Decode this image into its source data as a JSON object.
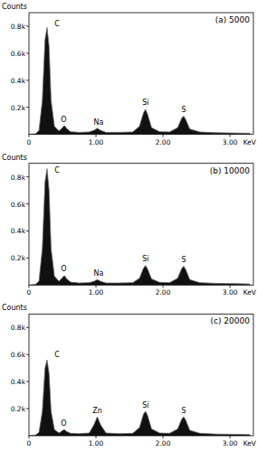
{
  "chart_data": [
    {
      "type": "area",
      "title": "(a) 5000",
      "xlabel": "KeV",
      "ylabel": "Counts",
      "color": "#111111",
      "grid": false,
      "xlim": [
        0,
        3.35
      ],
      "ylim": [
        0,
        900
      ],
      "xticks": [
        0,
        {
          "value": 1,
          "label": "1.00"
        },
        {
          "value": 2,
          "label": "2.00"
        },
        {
          "value": 3,
          "label": "3.00"
        }
      ],
      "yticks": [
        {
          "value": 200,
          "label": "0.2k"
        },
        {
          "value": 400,
          "label": "0.4k"
        },
        {
          "value": 600,
          "label": "0.6k"
        },
        {
          "value": 800,
          "label": "0.8k"
        }
      ],
      "x": [
        0,
        0.1,
        0.15,
        0.2,
        0.24,
        0.27,
        0.3,
        0.33,
        0.38,
        0.45,
        0.5,
        0.53,
        0.56,
        0.62,
        0.75,
        0.9,
        0.97,
        1.02,
        1.07,
        1.15,
        1.35,
        1.55,
        1.65,
        1.71,
        1.74,
        1.77,
        1.83,
        1.95,
        2.1,
        2.22,
        2.28,
        2.31,
        2.34,
        2.4,
        2.55,
        2.8,
        3.1,
        3.3
      ],
      "values": [
        0,
        5,
        30,
        250,
        700,
        790,
        650,
        250,
        60,
        25,
        50,
        65,
        45,
        20,
        15,
        18,
        30,
        45,
        30,
        15,
        15,
        18,
        60,
        160,
        185,
        150,
        50,
        20,
        18,
        50,
        120,
        135,
        110,
        40,
        18,
        12,
        10,
        8
      ],
      "annotations": [
        {
          "text": "C",
          "x": 0.42,
          "y": 800
        },
        {
          "text": "O",
          "x": 0.52,
          "y": 90
        },
        {
          "text": "Na",
          "x": 1.04,
          "y": 70
        },
        {
          "text": "Si",
          "x": 1.74,
          "y": 215
        },
        {
          "text": "S",
          "x": 2.31,
          "y": 165
        }
      ]
    },
    {
      "type": "area",
      "title": "(b) 10000",
      "xlabel": "KeV",
      "ylabel": "Counts",
      "color": "#111111",
      "grid": false,
      "xlim": [
        0,
        3.35
      ],
      "ylim": [
        0,
        900
      ],
      "xticks": [
        0,
        {
          "value": 1,
          "label": "1.00"
        },
        {
          "value": 2,
          "label": "2.00"
        },
        {
          "value": 3,
          "label": "3.00"
        }
      ],
      "yticks": [
        {
          "value": 200,
          "label": "0.2k"
        },
        {
          "value": 400,
          "label": "0.4k"
        },
        {
          "value": 600,
          "label": "0.6k"
        },
        {
          "value": 800,
          "label": "0.8k"
        }
      ],
      "x": [
        0,
        0.1,
        0.15,
        0.2,
        0.24,
        0.27,
        0.3,
        0.33,
        0.38,
        0.45,
        0.5,
        0.53,
        0.56,
        0.62,
        0.75,
        0.9,
        0.97,
        1.02,
        1.07,
        1.15,
        1.35,
        1.55,
        1.65,
        1.71,
        1.74,
        1.77,
        1.83,
        1.95,
        2.1,
        2.22,
        2.28,
        2.31,
        2.34,
        2.4,
        2.55,
        2.8,
        3.1,
        3.3
      ],
      "values": [
        0,
        5,
        30,
        270,
        760,
        860,
        700,
        270,
        65,
        28,
        55,
        70,
        48,
        22,
        15,
        18,
        28,
        40,
        28,
        15,
        15,
        18,
        50,
        125,
        145,
        120,
        45,
        20,
        18,
        50,
        122,
        140,
        115,
        40,
        18,
        12,
        10,
        8
      ],
      "annotations": [
        {
          "text": "C",
          "x": 0.42,
          "y": 830
        },
        {
          "text": "O",
          "x": 0.52,
          "y": 100
        },
        {
          "text": "Na",
          "x": 1.04,
          "y": 70
        },
        {
          "text": "Si",
          "x": 1.74,
          "y": 175
        },
        {
          "text": "S",
          "x": 2.31,
          "y": 170
        }
      ]
    },
    {
      "type": "area",
      "title": "(c) 20000",
      "xlabel": "KeV",
      "ylabel": "Counts",
      "color": "#111111",
      "grid": false,
      "xlim": [
        0,
        3.35
      ],
      "ylim": [
        0,
        900
      ],
      "xticks": [
        0,
        {
          "value": 1,
          "label": "1.00"
        },
        {
          "value": 2,
          "label": "2.00"
        },
        {
          "value": 3,
          "label": "3.00"
        }
      ],
      "yticks": [
        {
          "value": 200,
          "label": "0.2k"
        },
        {
          "value": 400,
          "label": "0.4k"
        },
        {
          "value": 600,
          "label": "0.6k"
        },
        {
          "value": 800,
          "label": "0.8k"
        }
      ],
      "x": [
        0,
        0.1,
        0.15,
        0.2,
        0.24,
        0.27,
        0.3,
        0.33,
        0.38,
        0.45,
        0.5,
        0.53,
        0.56,
        0.62,
        0.75,
        0.9,
        0.97,
        1.02,
        1.07,
        1.15,
        1.35,
        1.55,
        1.65,
        1.71,
        1.74,
        1.77,
        1.83,
        1.95,
        2.1,
        2.22,
        2.28,
        2.31,
        2.34,
        2.4,
        2.55,
        2.8,
        3.1,
        3.3
      ],
      "values": [
        0,
        5,
        25,
        180,
        500,
        560,
        460,
        180,
        45,
        20,
        38,
        45,
        32,
        18,
        15,
        20,
        80,
        140,
        80,
        20,
        15,
        18,
        60,
        160,
        180,
        150,
        50,
        20,
        18,
        50,
        122,
        140,
        115,
        40,
        18,
        12,
        10,
        8
      ],
      "annotations": [
        {
          "text": "C",
          "x": 0.42,
          "y": 580
        },
        {
          "text": "O",
          "x": 0.52,
          "y": 75
        },
        {
          "text": "Zn",
          "x": 1.02,
          "y": 170
        },
        {
          "text": "Si",
          "x": 1.74,
          "y": 210
        },
        {
          "text": "S",
          "x": 2.31,
          "y": 170
        }
      ]
    }
  ]
}
